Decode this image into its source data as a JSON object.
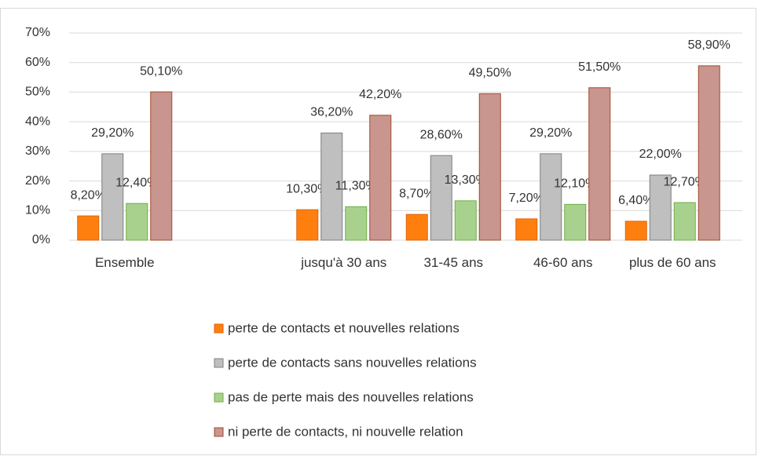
{
  "chart_data": {
    "type": "bar",
    "categories": [
      "Ensemble",
      null,
      "jusqu'à 30 ans",
      "31-45 ans",
      "46-60 ans",
      "plus de 60 ans"
    ],
    "series": [
      {
        "name": "perte de contacts et nouvelles relations",
        "color": "#ff7f0e",
        "values": [
          8.2,
          null,
          10.3,
          8.7,
          7.2,
          6.4
        ],
        "value_labels": [
          "8,20%",
          null,
          "10,30%",
          "8,70%",
          "7,20%",
          "6,40%"
        ]
      },
      {
        "name": "perte de contacts sans nouvelles relations",
        "color": "#bfbfbf",
        "values": [
          29.2,
          null,
          36.2,
          28.6,
          29.2,
          22.0
        ],
        "value_labels": [
          "29,20%",
          null,
          "36,20%",
          "28,60%",
          "29,20%",
          "22,00%"
        ]
      },
      {
        "name": "pas de perte mais des nouvelles relations",
        "color": "#a9d18e",
        "values": [
          12.4,
          null,
          11.3,
          13.3,
          12.1,
          12.7
        ],
        "value_labels": [
          "12,40%",
          null,
          "11,30%",
          "13,30%",
          "12,10%",
          "12,70%"
        ]
      },
      {
        "name": "ni perte de contacts, ni nouvelle relation",
        "color": "#c9958f",
        "values": [
          50.1,
          null,
          42.2,
          49.5,
          51.5,
          58.9
        ],
        "value_labels": [
          "50,10%",
          null,
          "42,20%",
          "49,50%",
          "51,50%",
          "58,90%"
        ]
      }
    ],
    "ylim": [
      0,
      70
    ],
    "yticks": [
      {
        "value": 0,
        "label": "0%"
      },
      {
        "value": 10,
        "label": "10%"
      },
      {
        "value": 20,
        "label": "20%"
      },
      {
        "value": 30,
        "label": "30%"
      },
      {
        "value": 40,
        "label": "40%"
      },
      {
        "value": 50,
        "label": "50%"
      },
      {
        "value": 60,
        "label": "60%"
      },
      {
        "value": 70,
        "label": "70%"
      }
    ],
    "grid": true
  }
}
